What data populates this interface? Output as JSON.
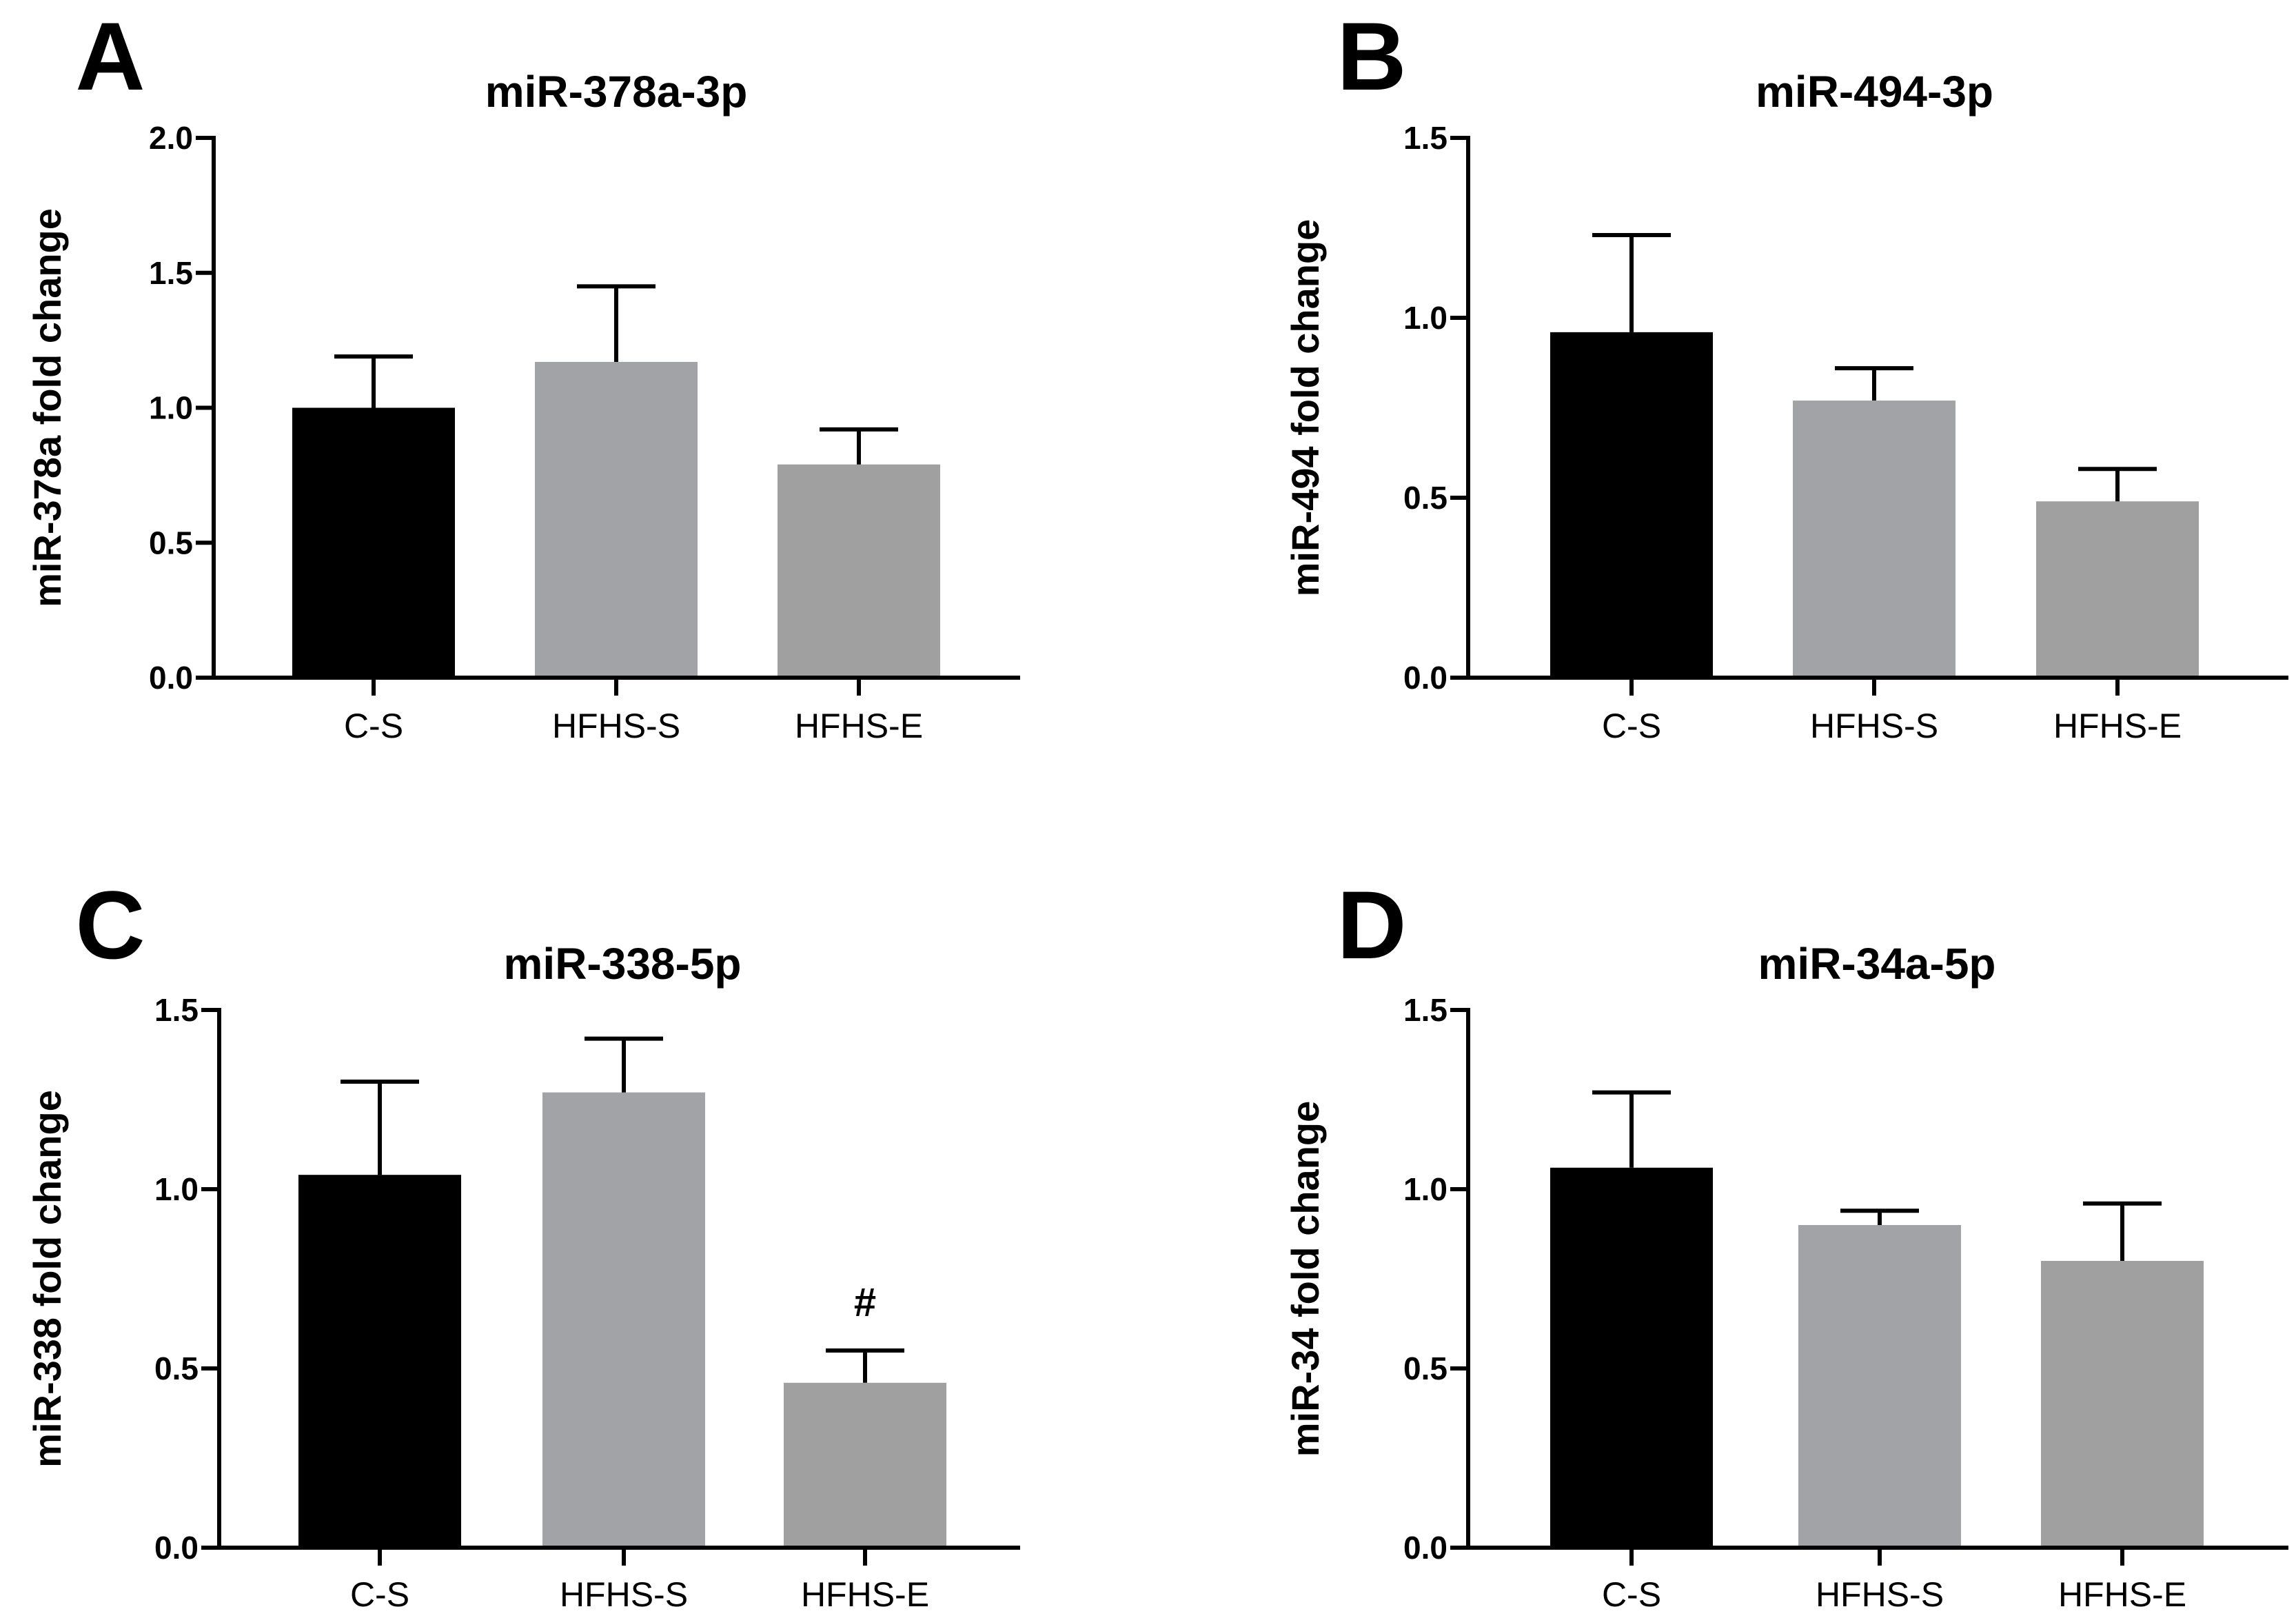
{
  "colors": {
    "C-S": "#000000",
    "HFHS-S": "#a2a3a6",
    "HFHS-E": "#a0a0a0",
    "axis": "#000000"
  },
  "chart_data": [
    {
      "panel": "A",
      "type": "bar",
      "title": "miR-378a-3p",
      "ylabel": "miR-378a fold change",
      "xlabel": "",
      "ylim": [
        0,
        2.0
      ],
      "yticks": [
        "0.0",
        "0.5",
        "1.0",
        "1.5",
        "2.0"
      ],
      "ytick_values": [
        0,
        0.5,
        1.0,
        1.5,
        2.0
      ],
      "categories": [
        "C-S",
        "HFHS-S",
        "HFHS-E"
      ],
      "values": [
        1.0,
        1.17,
        0.79
      ],
      "errors": [
        0.19,
        0.28,
        0.13
      ],
      "annotations": [
        "",
        "",
        ""
      ]
    },
    {
      "panel": "B",
      "type": "bar",
      "title": "miR-494-3p",
      "ylabel": "miR-494 fold change",
      "xlabel": "",
      "ylim": [
        0,
        1.5
      ],
      "yticks": [
        "0.0",
        "0.5",
        "1.0",
        "1.5"
      ],
      "ytick_values": [
        0,
        0.5,
        1.0,
        1.5
      ],
      "categories": [
        "C-S",
        "HFHS-S",
        "HFHS-E"
      ],
      "values": [
        0.96,
        0.77,
        0.49
      ],
      "errors": [
        0.27,
        0.09,
        0.09
      ],
      "annotations": [
        "",
        "",
        ""
      ]
    },
    {
      "panel": "C",
      "type": "bar",
      "title": "miR-338-5p",
      "ylabel": "miR-338 fold change",
      "xlabel": "",
      "ylim": [
        0,
        1.5
      ],
      "yticks": [
        "0.0",
        "0.5",
        "1.0",
        "1.5"
      ],
      "ytick_values": [
        0,
        0.5,
        1.0,
        1.5
      ],
      "categories": [
        "C-S",
        "HFHS-S",
        "HFHS-E"
      ],
      "values": [
        1.04,
        1.27,
        0.46
      ],
      "errors": [
        0.26,
        0.15,
        0.09
      ],
      "annotations": [
        "",
        "",
        "#"
      ]
    },
    {
      "panel": "D",
      "type": "bar",
      "title": "miR-34a-5p",
      "ylabel": "miR-34 fold change",
      "xlabel": "",
      "ylim": [
        0,
        1.5
      ],
      "yticks": [
        "0.0",
        "0.5",
        "1.0",
        "1.5"
      ],
      "ytick_values": [
        0,
        0.5,
        1.0,
        1.5
      ],
      "categories": [
        "C-S",
        "HFHS-S",
        "HFHS-E"
      ],
      "values": [
        1.06,
        0.9,
        0.8
      ],
      "errors": [
        0.21,
        0.04,
        0.16
      ],
      "annotations": [
        "",
        "",
        ""
      ]
    }
  ]
}
